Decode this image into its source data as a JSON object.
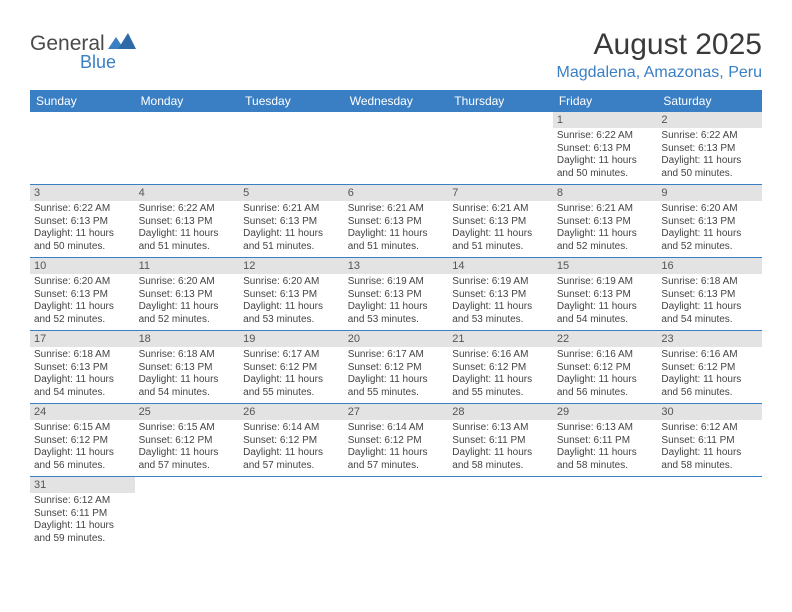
{
  "logo": {
    "word1": "General",
    "word2": "Blue"
  },
  "title": "August 2025",
  "location": "Magdalena, Amazonas, Peru",
  "colors": {
    "brand": "#3a7fc4",
    "header_bg": "#3a7fc4",
    "header_text": "#ffffff",
    "daynum_bg": "#e3e3e3",
    "text": "#444444",
    "separator": "#3a7fc4"
  },
  "day_headers": [
    "Sunday",
    "Monday",
    "Tuesday",
    "Wednesday",
    "Thursday",
    "Friday",
    "Saturday"
  ],
  "weeks": [
    [
      null,
      null,
      null,
      null,
      null,
      {
        "n": "1",
        "sr": "6:22 AM",
        "ss": "6:13 PM",
        "dl": "11 hours and 50 minutes."
      },
      {
        "n": "2",
        "sr": "6:22 AM",
        "ss": "6:13 PM",
        "dl": "11 hours and 50 minutes."
      }
    ],
    [
      {
        "n": "3",
        "sr": "6:22 AM",
        "ss": "6:13 PM",
        "dl": "11 hours and 50 minutes."
      },
      {
        "n": "4",
        "sr": "6:22 AM",
        "ss": "6:13 PM",
        "dl": "11 hours and 51 minutes."
      },
      {
        "n": "5",
        "sr": "6:21 AM",
        "ss": "6:13 PM",
        "dl": "11 hours and 51 minutes."
      },
      {
        "n": "6",
        "sr": "6:21 AM",
        "ss": "6:13 PM",
        "dl": "11 hours and 51 minutes."
      },
      {
        "n": "7",
        "sr": "6:21 AM",
        "ss": "6:13 PM",
        "dl": "11 hours and 51 minutes."
      },
      {
        "n": "8",
        "sr": "6:21 AM",
        "ss": "6:13 PM",
        "dl": "11 hours and 52 minutes."
      },
      {
        "n": "9",
        "sr": "6:20 AM",
        "ss": "6:13 PM",
        "dl": "11 hours and 52 minutes."
      }
    ],
    [
      {
        "n": "10",
        "sr": "6:20 AM",
        "ss": "6:13 PM",
        "dl": "11 hours and 52 minutes."
      },
      {
        "n": "11",
        "sr": "6:20 AM",
        "ss": "6:13 PM",
        "dl": "11 hours and 52 minutes."
      },
      {
        "n": "12",
        "sr": "6:20 AM",
        "ss": "6:13 PM",
        "dl": "11 hours and 53 minutes."
      },
      {
        "n": "13",
        "sr": "6:19 AM",
        "ss": "6:13 PM",
        "dl": "11 hours and 53 minutes."
      },
      {
        "n": "14",
        "sr": "6:19 AM",
        "ss": "6:13 PM",
        "dl": "11 hours and 53 minutes."
      },
      {
        "n": "15",
        "sr": "6:19 AM",
        "ss": "6:13 PM",
        "dl": "11 hours and 54 minutes."
      },
      {
        "n": "16",
        "sr": "6:18 AM",
        "ss": "6:13 PM",
        "dl": "11 hours and 54 minutes."
      }
    ],
    [
      {
        "n": "17",
        "sr": "6:18 AM",
        "ss": "6:13 PM",
        "dl": "11 hours and 54 minutes."
      },
      {
        "n": "18",
        "sr": "6:18 AM",
        "ss": "6:13 PM",
        "dl": "11 hours and 54 minutes."
      },
      {
        "n": "19",
        "sr": "6:17 AM",
        "ss": "6:12 PM",
        "dl": "11 hours and 55 minutes."
      },
      {
        "n": "20",
        "sr": "6:17 AM",
        "ss": "6:12 PM",
        "dl": "11 hours and 55 minutes."
      },
      {
        "n": "21",
        "sr": "6:16 AM",
        "ss": "6:12 PM",
        "dl": "11 hours and 55 minutes."
      },
      {
        "n": "22",
        "sr": "6:16 AM",
        "ss": "6:12 PM",
        "dl": "11 hours and 56 minutes."
      },
      {
        "n": "23",
        "sr": "6:16 AM",
        "ss": "6:12 PM",
        "dl": "11 hours and 56 minutes."
      }
    ],
    [
      {
        "n": "24",
        "sr": "6:15 AM",
        "ss": "6:12 PM",
        "dl": "11 hours and 56 minutes."
      },
      {
        "n": "25",
        "sr": "6:15 AM",
        "ss": "6:12 PM",
        "dl": "11 hours and 57 minutes."
      },
      {
        "n": "26",
        "sr": "6:14 AM",
        "ss": "6:12 PM",
        "dl": "11 hours and 57 minutes."
      },
      {
        "n": "27",
        "sr": "6:14 AM",
        "ss": "6:12 PM",
        "dl": "11 hours and 57 minutes."
      },
      {
        "n": "28",
        "sr": "6:13 AM",
        "ss": "6:11 PM",
        "dl": "11 hours and 58 minutes."
      },
      {
        "n": "29",
        "sr": "6:13 AM",
        "ss": "6:11 PM",
        "dl": "11 hours and 58 minutes."
      },
      {
        "n": "30",
        "sr": "6:12 AM",
        "ss": "6:11 PM",
        "dl": "11 hours and 58 minutes."
      }
    ],
    [
      {
        "n": "31",
        "sr": "6:12 AM",
        "ss": "6:11 PM",
        "dl": "11 hours and 59 minutes."
      },
      null,
      null,
      null,
      null,
      null,
      null
    ]
  ],
  "labels": {
    "sunrise": "Sunrise:",
    "sunset": "Sunset:",
    "daylight": "Daylight:"
  }
}
